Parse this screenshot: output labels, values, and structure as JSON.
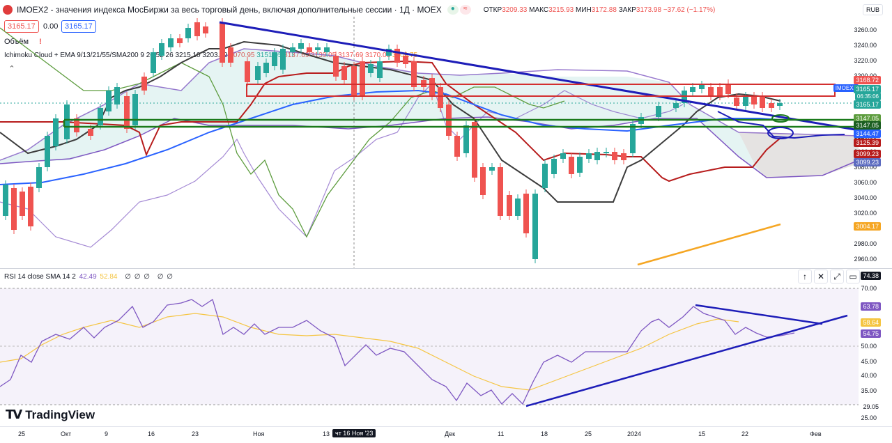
{
  "header": {
    "symbol": "IMOEX2",
    "title": "IMOEX2 - значения индекса МосБиржи за весь торговый день, включая дополнительные сессии · 1Д · MOEX",
    "open_label": "ОТКР",
    "open": "3209.33",
    "high_label": "МАКС",
    "high": "3215.93",
    "low_label": "МИН",
    "low": "3172.88",
    "close_label": "ЗАКР",
    "close": "3173.98",
    "change": "−37.62 (−1.17%)",
    "currency": "RUB"
  },
  "price_boxes": {
    "sell": "3165.17",
    "spread": "0.00",
    "buy": "3165.17"
  },
  "indicators": {
    "volume_label": "Объём",
    "ichimoku": "Ichimoku Cloud + EMA 9/13/21/55/SMA200 9 26 52 26",
    "ichimoku_values": [
      "3215.10",
      "3203.19",
      "3070.95",
      "3151.05",
      "3137.69",
      "3139.05",
      "3137.69",
      "3170.03",
      "3809.75"
    ],
    "rsi": "RSI 14 close SMA 14 2",
    "rsi_values": [
      "42.49",
      "52.84",
      "∅",
      "∅",
      "∅",
      "∅",
      "∅"
    ]
  },
  "price_axis": [
    "3260.00",
    "3240.00",
    "3220.00",
    "3200.00",
    "3180.00",
    "3160.00",
    "3140.00",
    "3120.00",
    "3100.00",
    "3080.00",
    "3060.00",
    "3040.00",
    "3020.00",
    "3000.00",
    "2980.00",
    "2960.00"
  ],
  "price_tags": {
    "a": "3168.72",
    "symbol": "IMOEX2",
    "last": "3165.17",
    "countdown": "06:35:06",
    "b": "3165.17",
    "c": "3147.05",
    "d": "3147.05",
    "e": "3144.47",
    "f": "3125.39",
    "g": "3099.23",
    "h": "3099.23",
    "i": "3004.17"
  },
  "rsi_axis": [
    "70.00",
    "65.00",
    "60.00",
    "55.00",
    "50.00",
    "45.00",
    "40.00",
    "35.00",
    "30.00",
    "25.00"
  ],
  "rsi_tags": {
    "top": "74.38",
    "a": "63.78",
    "b": "58.64",
    "c": "54.75",
    "d": "29.05"
  },
  "time_axis": [
    "25",
    "Окт",
    "9",
    "16",
    "23",
    "Ноя",
    "13",
    "чт 16 Ноя '23",
    "Дек",
    "11",
    "18",
    "25",
    "2024",
    "15",
    "22",
    "Фев"
  ],
  "brand": "TradingView",
  "colors": {
    "up": "#26a69a",
    "down": "#ef5350",
    "trend": "#1d1db8",
    "rsi": "#7e57c2",
    "ema_blue": "#2962ff"
  }
}
